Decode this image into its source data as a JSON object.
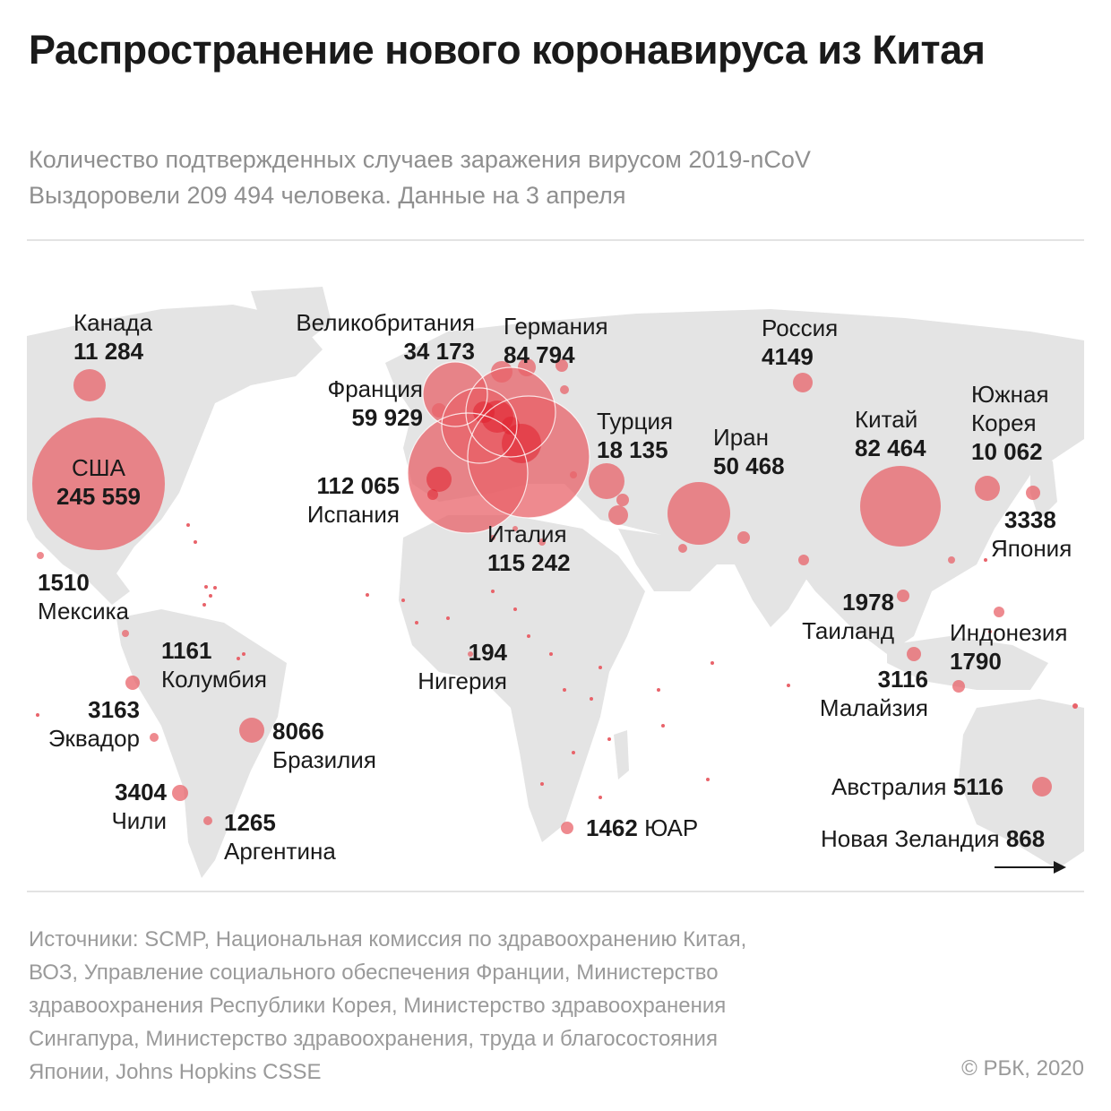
{
  "header": {
    "title": "Распространение нового коронавируса из Китая",
    "subtitle_line1": "Количество подтвержденных случаев заражения вирусом 2019-nCoV",
    "subtitle_line2": "Выздоровели 209 494 человека. Данные на 3 апреля"
  },
  "colors": {
    "bubble": "#e8636a",
    "bubble_dark": "#e0202e",
    "land": "#e4e4e4",
    "text": "#1a1a1a",
    "muted": "#999999"
  },
  "countries": [
    {
      "id": "canada",
      "name": "Канада",
      "cases": "11 284"
    },
    {
      "id": "usa",
      "name": "США",
      "cases": "245 559"
    },
    {
      "id": "mexico",
      "name": "Мексика",
      "cases": "1510"
    },
    {
      "id": "colombia",
      "name": "Колумбия",
      "cases": "1161"
    },
    {
      "id": "ecuador",
      "name": "Эквадор",
      "cases": "3163"
    },
    {
      "id": "brazil",
      "name": "Бразилия",
      "cases": "8066"
    },
    {
      "id": "chile",
      "name": "Чили",
      "cases": "3404"
    },
    {
      "id": "argentina",
      "name": "Аргентина",
      "cases": "1265"
    },
    {
      "id": "uk",
      "name": "Великобритания",
      "cases": "34 173"
    },
    {
      "id": "germany",
      "name": "Германия",
      "cases": "84 794"
    },
    {
      "id": "france",
      "name": "Франция",
      "cases": "59 929"
    },
    {
      "id": "spain",
      "name": "Испания",
      "cases": "112 065"
    },
    {
      "id": "italy",
      "name": "Италия",
      "cases": "115 242"
    },
    {
      "id": "turkey",
      "name": "Турция",
      "cases": "18 135"
    },
    {
      "id": "iran",
      "name": "Иран",
      "cases": "50 468"
    },
    {
      "id": "russia",
      "name": "Россия",
      "cases": "4149"
    },
    {
      "id": "china",
      "name": "Китай",
      "cases": "82 464"
    },
    {
      "id": "south_korea",
      "name_line1": "Южная",
      "name_line2": "Корея",
      "cases": "10 062"
    },
    {
      "id": "japan",
      "name": "Япония",
      "cases": "3338"
    },
    {
      "id": "thailand",
      "name": "Таиланд",
      "cases": "1978"
    },
    {
      "id": "malaysia",
      "name": "Малайзия",
      "cases": "3116"
    },
    {
      "id": "indonesia",
      "name": "Индонезия",
      "cases": "1790"
    },
    {
      "id": "nigeria",
      "name": "Нигерия",
      "cases": "194"
    },
    {
      "id": "south_africa",
      "name": "ЮАР",
      "cases": "1462"
    },
    {
      "id": "australia",
      "name": "Австралия",
      "cases": "5116"
    },
    {
      "id": "new_zealand",
      "name": "Новая Зеландия",
      "cases": "868"
    }
  ],
  "footer": {
    "sources_line1": "Источники: SCMP, Национальная комиссия по здравоохранению Китая,",
    "sources_line2": "ВОЗ, Управление социального обеспечения Франции, Министерство",
    "sources_line3": "здравоохранения Республики Корея, Министерство здравоохранения",
    "sources_line4": "Сингапура, Министерство здравоохранения, труда и благосостояния",
    "sources_line5": "Японии, Johns Hopkins CSSE",
    "copyright": "© РБК, 2020"
  }
}
